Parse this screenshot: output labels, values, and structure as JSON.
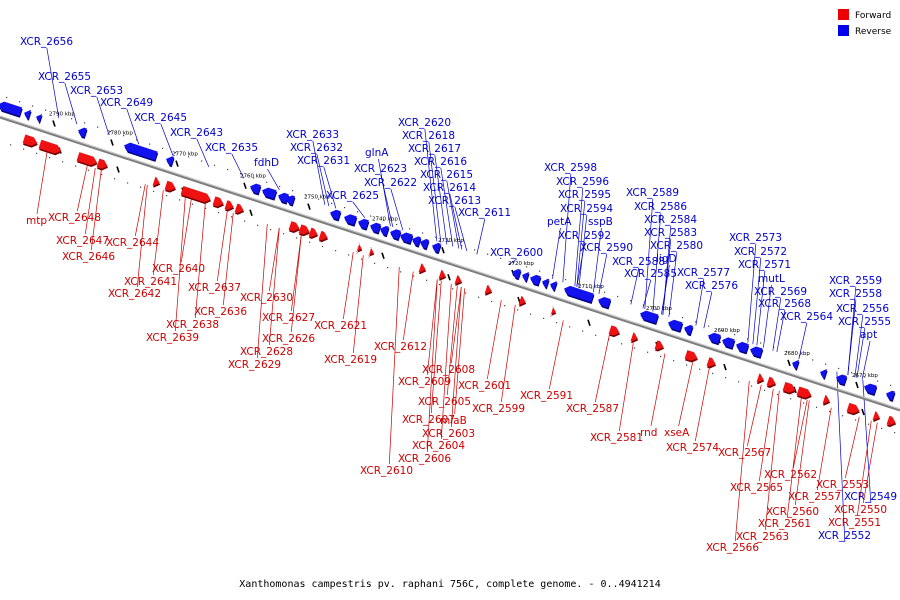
{
  "caption": "Xanthomonas campestris pv. raphani 756C, complete genome. - 0..4941214",
  "legend": {
    "forward": {
      "label": "Forward",
      "color": "#ee0000"
    },
    "reverse": {
      "label": "Reverse",
      "color": "#0000ee"
    }
  },
  "ticks": [
    "2790 kbp",
    "2780 kbp",
    "2770 kbp",
    "2760 kbp",
    "2750 kbp",
    "2740 kbp",
    "2730 kbp",
    "2720 kbp",
    "2710 kbp",
    "2700 kbp",
    "2690 kbp",
    "2680 kbp",
    "2670 kbp"
  ],
  "reverse_genes": [
    "XCR_2656",
    "XCR_2655",
    "XCR_2653",
    "XCR_2649",
    "XCR_2645",
    "XCR_2643",
    "XCR_2635",
    "fdhD",
    "XCR_2633",
    "XCR_2632",
    "XCR_2631",
    "XCR_2625",
    "XCR_2623",
    "glnA",
    "XCR_2622",
    "XCR_2620",
    "XCR_2618",
    "XCR_2617",
    "XCR_2616",
    "XCR_2615",
    "XCR_2614",
    "XCR_2613",
    "XCR_2611",
    "XCR_2600",
    "XCR_2598",
    "XCR_2596",
    "XCR_2595",
    "XCR_2594",
    "petA",
    "sspB",
    "XCR_2592",
    "XCR_2590",
    "XCR_2589",
    "XCR_2586",
    "XCR_2584",
    "XCR_2583",
    "XCR_2580",
    "ligD",
    "XCR_2588",
    "XCR_2585",
    "XCR_2577",
    "XCR_2576",
    "XCR_2573",
    "XCR_2572",
    "XCR_2571",
    "mutL",
    "XCR_2569",
    "XCR_2568",
    "XCR_2564",
    "XCR_2559",
    "XCR_2558",
    "XCR_2556",
    "XCR_2555",
    "apt",
    "XCR_2549",
    "XCR_2552"
  ],
  "forward_genes": [
    "mtp",
    "XCR_2648",
    "XCR_2647",
    "XCR_2646",
    "XCR_2644",
    "XCR_2640",
    "XCR_2641",
    "XCR_2642",
    "XCR_2637",
    "XCR_2638",
    "XCR_2636",
    "XCR_2639",
    "XCR_2630",
    "XCR_2627",
    "XCR_2626",
    "XCR_2628",
    "XCR_2629",
    "XCR_2621",
    "XCR_2619",
    "XCR_2612",
    "XCR_2608",
    "XCR_2609",
    "XCR_2601",
    "XCR_2605",
    "XCR_2599",
    "XCR_2607",
    "miaB",
    "XCR_2603",
    "XCR_2604",
    "XCR_2606",
    "XCR_2610",
    "XCR_2591",
    "XCR_2587",
    "XCR_2581",
    "rnd",
    "xseA",
    "XCR_2574",
    "XCR_2567",
    "XCR_2565",
    "XCR_2562",
    "XCR_2557",
    "XCR_2553",
    "XCR_2560",
    "XCR_2550",
    "XCR_2561",
    "XCR_2551",
    "XCR_2563",
    "XCR_2566"
  ]
}
